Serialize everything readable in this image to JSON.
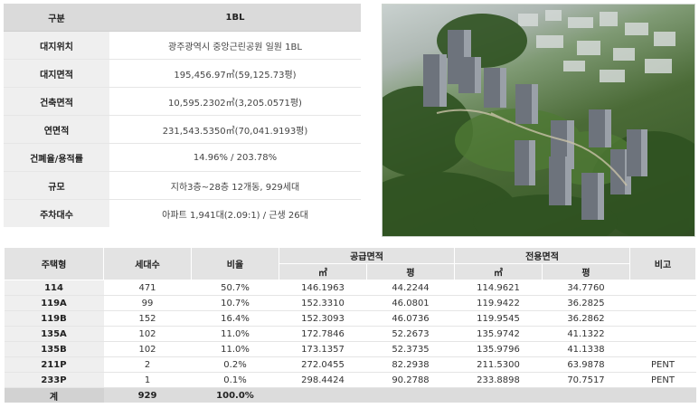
{
  "summary": {
    "header": {
      "key": "구분",
      "value": "1BL"
    },
    "rows": [
      {
        "key": "대지위치",
        "value": "광주광역시 중앙근린공원 일원 1BL"
      },
      {
        "key": "대지면적",
        "value": "195,456.97㎡(59,125.73평)"
      },
      {
        "key": "건축면적",
        "value": "10,595.2302㎡(3,205.0571평)"
      },
      {
        "key": "연면적",
        "value": "231,543.5350㎡(70,041.9193평)"
      },
      {
        "key": "건폐율/용적률",
        "value": "14.96% / 203.78%"
      },
      {
        "key": "규모",
        "value": "지하3층~28층 12개동, 929세대"
      },
      {
        "key": "주차대수",
        "value": "아파트 1,941대(2.09:1) / 근생 26대"
      }
    ]
  },
  "units": {
    "headers": {
      "type": "주택형",
      "households": "세대수",
      "ratio": "비율",
      "supply": "공급면적",
      "exclusive": "전용면적",
      "note": "비고",
      "sqm": "㎡",
      "pyeong": "평"
    },
    "rows": [
      {
        "type": "114",
        "households": "471",
        "ratio": "50.7%",
        "supply_sqm": "146.1963",
        "supply_py": "44.2244",
        "excl_sqm": "114.9621",
        "excl_py": "34.7760",
        "note": ""
      },
      {
        "type": "119A",
        "households": "99",
        "ratio": "10.7%",
        "supply_sqm": "152.3310",
        "supply_py": "46.0801",
        "excl_sqm": "119.9422",
        "excl_py": "36.2825",
        "note": ""
      },
      {
        "type": "119B",
        "households": "152",
        "ratio": "16.4%",
        "supply_sqm": "152.3093",
        "supply_py": "46.0736",
        "excl_sqm": "119.9545",
        "excl_py": "36.2862",
        "note": ""
      },
      {
        "type": "135A",
        "households": "102",
        "ratio": "11.0%",
        "supply_sqm": "172.7846",
        "supply_py": "52.2673",
        "excl_sqm": "135.9742",
        "excl_py": "41.1322",
        "note": ""
      },
      {
        "type": "135B",
        "households": "102",
        "ratio": "11.0%",
        "supply_sqm": "173.1357",
        "supply_py": "52.3735",
        "excl_sqm": "135.9796",
        "excl_py": "41.1338",
        "note": ""
      },
      {
        "type": "211P",
        "households": "2",
        "ratio": "0.2%",
        "supply_sqm": "272.0455",
        "supply_py": "82.2938",
        "excl_sqm": "211.5300",
        "excl_py": "63.9878",
        "note": "PENT"
      },
      {
        "type": "233P",
        "households": "1",
        "ratio": "0.1%",
        "supply_sqm": "298.4424",
        "supply_py": "90.2788",
        "excl_sqm": "233.8898",
        "excl_py": "70.7517",
        "note": "PENT"
      }
    ],
    "total": {
      "type": "계",
      "households": "929",
      "ratio": "100.0%"
    }
  }
}
